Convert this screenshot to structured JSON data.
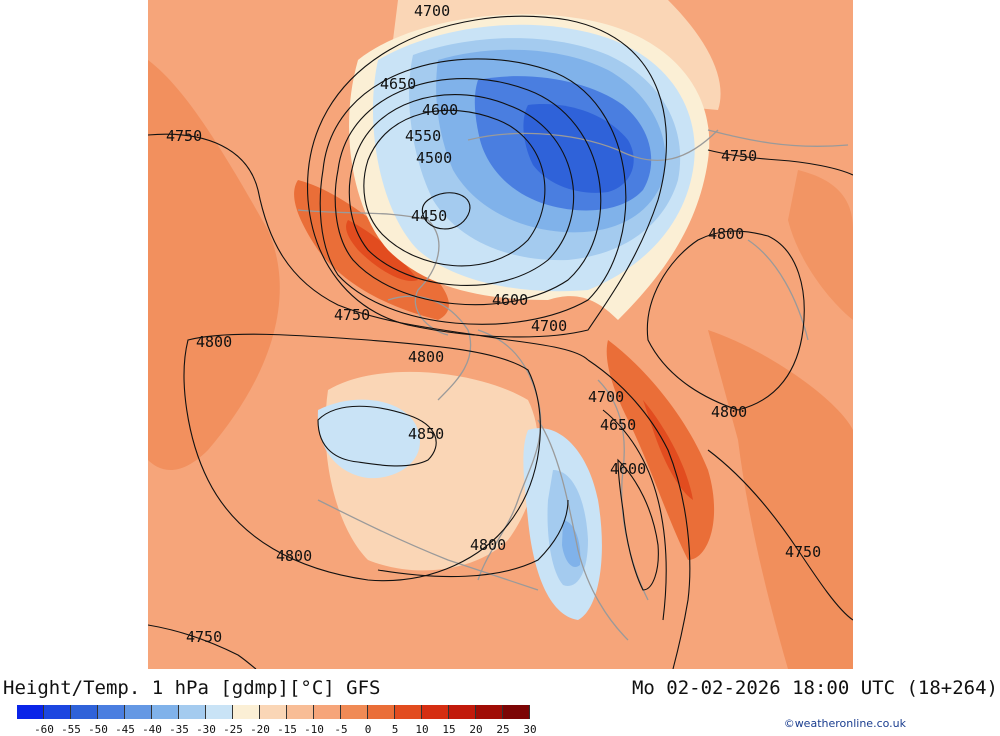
{
  "map": {
    "contour_labels": [
      {
        "id": "c4700-top",
        "text": "4700"
      },
      {
        "id": "c4650-nw",
        "text": "4650"
      },
      {
        "id": "c4600-n",
        "text": "4600"
      },
      {
        "id": "c4550-n",
        "text": "4550"
      },
      {
        "id": "c4500-n",
        "text": "4500"
      },
      {
        "id": "c4450-center",
        "text": "4450"
      },
      {
        "id": "c4600-s",
        "text": "4600"
      },
      {
        "id": "c4700-s",
        "text": "4700"
      },
      {
        "id": "c4750-w",
        "text": "4750"
      },
      {
        "id": "c4750-ne",
        "text": "4750"
      },
      {
        "id": "c4800-ne",
        "text": "4800"
      },
      {
        "id": "c4750-mid",
        "text": "4750"
      },
      {
        "id": "c4800-w",
        "text": "4800"
      },
      {
        "id": "c4800-mid",
        "text": "4800"
      },
      {
        "id": "c4700-e",
        "text": "4700"
      },
      {
        "id": "c4650-e",
        "text": "4650"
      },
      {
        "id": "c4600-e",
        "text": "4600"
      },
      {
        "id": "c4800-e",
        "text": "4800"
      },
      {
        "id": "c4850-center",
        "text": "4850"
      },
      {
        "id": "c4800-sw",
        "text": "4800"
      },
      {
        "id": "c4800-s",
        "text": "4800"
      },
      {
        "id": "c4750-se",
        "text": "4750"
      },
      {
        "id": "c4750-sw",
        "text": "4750"
      }
    ]
  },
  "footer": {
    "title": "Height/Temp. 1 hPa [gdmp][°C] GFS",
    "datetime": "Mo 02-02-2026 18:00 UTC (18+264)",
    "credit": "©weatheronline.co.uk"
  },
  "colorbar": {
    "colors": [
      "#0a24e8",
      "#1c46e0",
      "#2f62d9",
      "#4a7ee0",
      "#6498e4",
      "#80b2ea",
      "#a4cbef",
      "#c9e3f6",
      "#fbefd5",
      "#fad6b6",
      "#f8bd96",
      "#f6a57a",
      "#f08a55",
      "#ea6e38",
      "#e24c1f",
      "#d52e12",
      "#c21a0b",
      "#a00c05",
      "#7c0505"
    ],
    "ticks": [
      "-60",
      "-55",
      "-50",
      "-45",
      "-40",
      "-35",
      "-30",
      "-25",
      "-20",
      "-15",
      "-10",
      "-5",
      "0",
      "5",
      "10",
      "15",
      "20",
      "25",
      "30"
    ]
  }
}
